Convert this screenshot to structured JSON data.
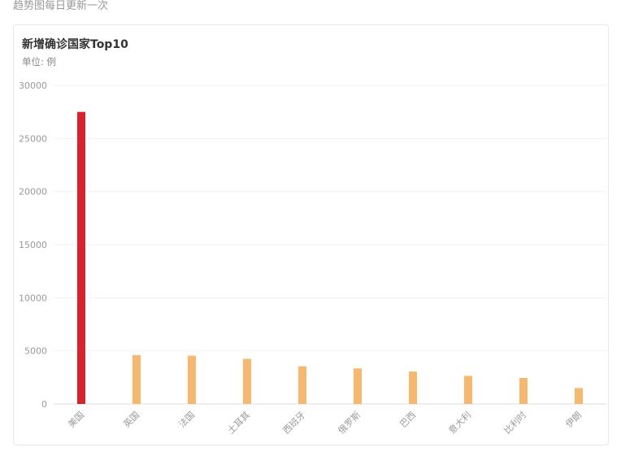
{
  "top_note": "趋势图每日更新一次",
  "card": {
    "title": "新增确诊国家Top10",
    "unit": "单位: 例"
  },
  "colors": {
    "highlight": "#d9232a",
    "bar": "#f6b86f",
    "grid": "#f2f2f2",
    "axis": "#dddddd"
  },
  "chart_data": {
    "type": "bar",
    "title": "新增确诊国家Top10",
    "subtitle": "单位: 例",
    "categories": [
      "美国",
      "英国",
      "法国",
      "土耳其",
      "西班牙",
      "俄罗斯",
      "巴西",
      "意大利",
      "比利时",
      "伊朗"
    ],
    "values": [
      27500,
      4600,
      4550,
      4250,
      3550,
      3350,
      3050,
      2650,
      2450,
      1500
    ],
    "highlight_index": 0,
    "yticks": [
      0,
      5000,
      10000,
      15000,
      20000,
      25000,
      30000
    ],
    "ylim": [
      0,
      30000
    ],
    "grid": true,
    "legend": "none"
  }
}
